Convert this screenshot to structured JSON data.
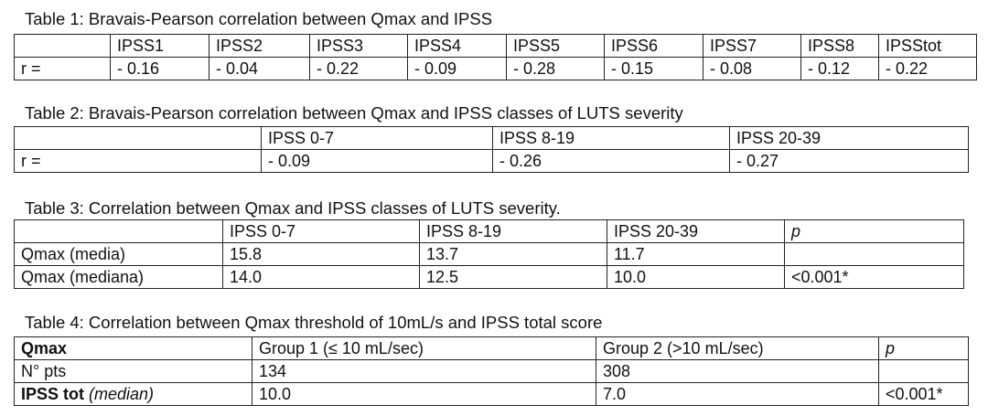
{
  "tables": [
    {
      "caption": "Table 1: Bravais-Pearson correlation between Qmax and IPSS",
      "rows": [
        [
          null,
          "IPSS1",
          "IPSS2",
          "IPSS3",
          "IPSS4",
          "IPSS5",
          "IPSS6",
          "IPSS7",
          "IPSS8",
          "IPSStot"
        ],
        [
          "r =",
          "- 0.16",
          "- 0.04",
          "- 0.22",
          "- 0.09",
          "- 0.28",
          "- 0.15",
          "- 0.08",
          "- 0.12",
          "- 0.22"
        ]
      ]
    },
    {
      "caption": "Table 2: Bravais-Pearson correlation between Qmax and IPSS classes of LUTS severity",
      "rows": [
        [
          null,
          "IPSS 0-7",
          "IPSS 8-19",
          "IPSS 20-39"
        ],
        [
          "r =",
          "- 0.09",
          "- 0.26",
          "- 0.27"
        ]
      ]
    },
    {
      "caption": "Table 3: Correlation between Qmax and IPSS classes of LUTS severity.",
      "rows": [
        [
          null,
          "IPSS 0-7",
          "IPSS 8-19",
          "IPSS 20-39",
          "p"
        ],
        [
          "Qmax (media)",
          "15.8",
          "13.7",
          "11.7",
          null
        ],
        [
          "Qmax (mediana)",
          "14.0",
          "12.5",
          "10.0",
          "<0.001*"
        ]
      ]
    },
    {
      "caption": "Table 4: Correlation between Qmax threshold of 10mL/s and IPSS total score",
      "rows": [
        [
          "Qmax",
          "Group 1 (≤ 10 mL/sec)",
          "Group 2 (>10 mL/sec)",
          "p"
        ],
        [
          "N° pts",
          "134",
          "308",
          null
        ],
        [
          {
            "label": "IPSS tot",
            "qualifier": "(median)"
          },
          "10.0",
          "7.0",
          "<0.001*"
        ]
      ]
    }
  ]
}
